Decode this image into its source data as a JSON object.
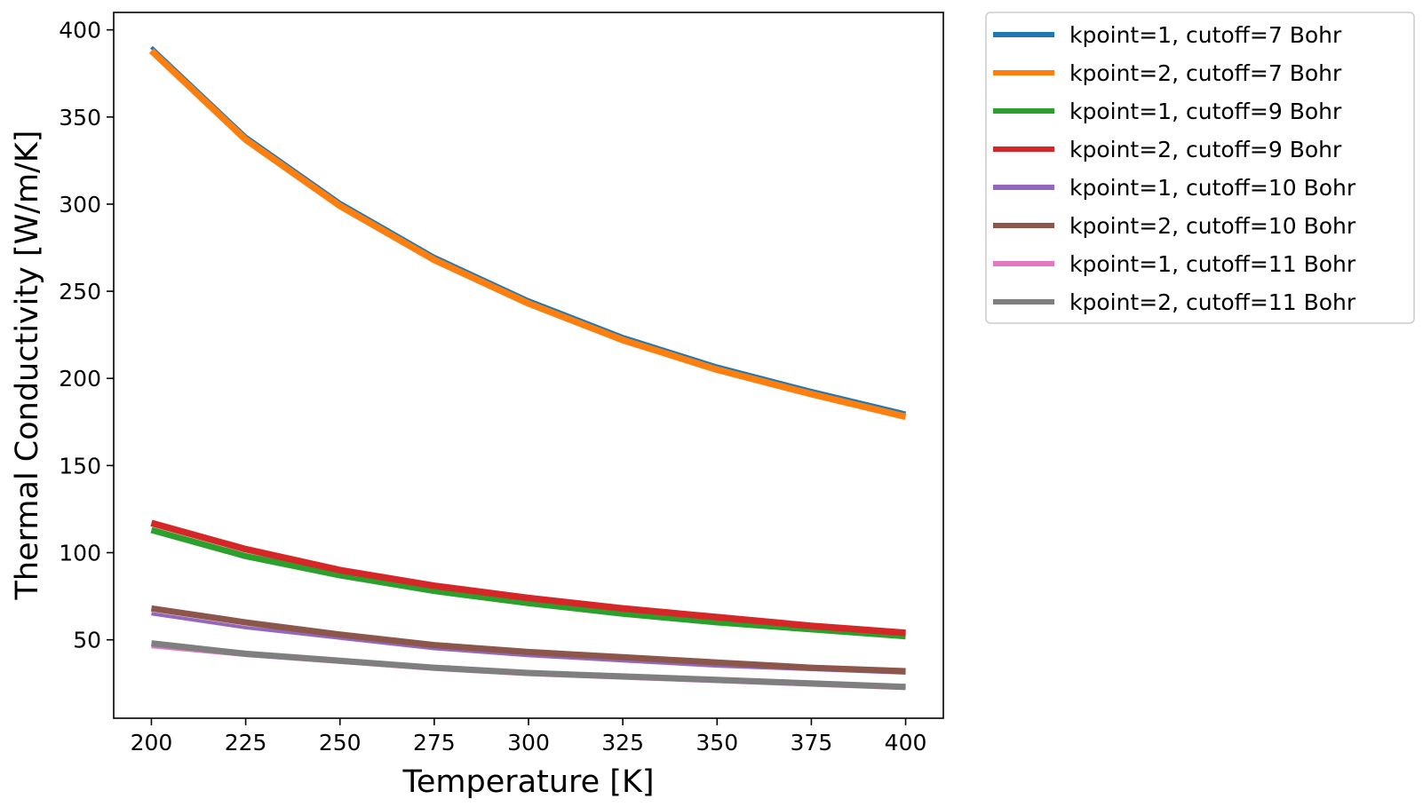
{
  "chart_data": {
    "type": "line",
    "title": "",
    "xlabel": "Temperature [K]",
    "ylabel": "Thermal Conductivity [W/m/K]",
    "xlim": [
      190,
      410
    ],
    "ylim": [
      5,
      410
    ],
    "x_ticks": [
      200,
      225,
      250,
      275,
      300,
      325,
      350,
      375,
      400
    ],
    "y_ticks": [
      50,
      100,
      150,
      200,
      250,
      300,
      350,
      400
    ],
    "grid": false,
    "legend_placement": "outside-top-right",
    "x": [
      200,
      225,
      250,
      275,
      300,
      325,
      350,
      375,
      400
    ],
    "series": [
      {
        "name": "kpoint=1, cutoff=7 Bohr",
        "color": "#1f77b4",
        "values": [
          390,
          339,
          301,
          270,
          245,
          224,
          207,
          193,
          180
        ]
      },
      {
        "name": "kpoint=2, cutoff=7 Bohr",
        "color": "#ff7f0e",
        "values": [
          388,
          337,
          299,
          268,
          243,
          222,
          205,
          191,
          178
        ]
      },
      {
        "name": "kpoint=1, cutoff=9 Bohr",
        "color": "#2ca02c",
        "values": [
          113,
          98,
          87,
          78,
          71,
          65,
          60,
          56,
          52
        ]
      },
      {
        "name": "kpoint=2, cutoff=9 Bohr",
        "color": "#d62728",
        "values": [
          117,
          102,
          90,
          81,
          74,
          68,
          63,
          58,
          54
        ]
      },
      {
        "name": "kpoint=1, cutoff=10 Bohr",
        "color": "#9467bd",
        "values": [
          65,
          57,
          51,
          45,
          41,
          38,
          35,
          33,
          31
        ]
      },
      {
        "name": "kpoint=2, cutoff=10 Bohr",
        "color": "#8c564b",
        "values": [
          68,
          60,
          53,
          47,
          43,
          40,
          37,
          34,
          32
        ]
      },
      {
        "name": "kpoint=1, cutoff=11 Bohr",
        "color": "#e377c2",
        "values": [
          46,
          41,
          37,
          33,
          30,
          28,
          26,
          24,
          22
        ]
      },
      {
        "name": "kpoint=2, cutoff=11 Bohr",
        "color": "#7f7f7f",
        "values": [
          48,
          42,
          38,
          34,
          31,
          29,
          27,
          25,
          23
        ]
      }
    ]
  }
}
